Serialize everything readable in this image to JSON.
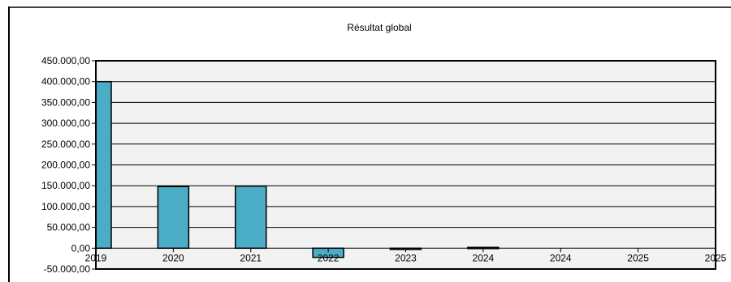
{
  "chart_data": {
    "type": "bar",
    "title": "Résultat global",
    "xlabel": "",
    "ylabel": "",
    "categories": [
      "2019",
      "2020",
      "2021",
      "2022",
      "2023",
      "2024",
      "2024",
      "2025",
      "2025"
    ],
    "values": [
      400000,
      148000,
      149000,
      -22000,
      -2000,
      2000,
      0,
      0,
      0
    ],
    "ylim": [
      -50000,
      450000
    ],
    "yticks": [
      "450.000,00",
      "400.000,00",
      "350.000,00",
      "300.000,00",
      "250.000,00",
      "200.000,00",
      "150.000,00",
      "100.000,00",
      "50.000,00",
      "0,00",
      "-50.000,00"
    ],
    "grid": true,
    "legend": "none",
    "colors": {
      "bar": "#4bacc6",
      "plot_bg": "#f2f2f2",
      "border": "#000000"
    }
  }
}
